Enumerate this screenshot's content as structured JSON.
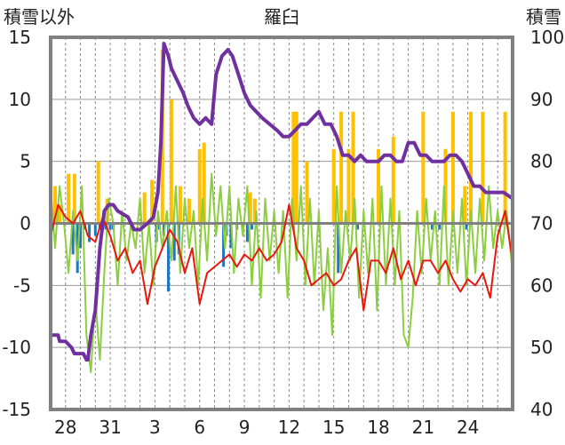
{
  "chart_data": {
    "type": "line",
    "title": "羅臼",
    "ylabel_left": "積雪以外",
    "ylabel_right": "積雪",
    "y_left_range": [
      -15,
      15
    ],
    "y_right_range": [
      40,
      100
    ],
    "y_left_ticks": [
      "15",
      "10",
      "5",
      "0",
      "-5",
      "-10",
      "-15"
    ],
    "y_right_ticks": [
      "100",
      "90",
      "80",
      "70",
      "60",
      "50",
      "40"
    ],
    "x_range": [
      0,
      31
    ],
    "x_ticks": [
      {
        "x": 1,
        "label": "28"
      },
      {
        "x": 4,
        "label": "31"
      },
      {
        "x": 7,
        "label": "3"
      },
      {
        "x": 10,
        "label": "6"
      },
      {
        "x": 13,
        "label": "9"
      },
      {
        "x": 16,
        "label": "12"
      },
      {
        "x": 19,
        "label": "15"
      },
      {
        "x": 22,
        "label": "18"
      },
      {
        "x": 25,
        "label": "21"
      },
      {
        "x": 28,
        "label": "24"
      }
    ],
    "grid": true,
    "colors": {
      "snow_depth": "#7030a0",
      "temperature": "#e8180e",
      "green_series": "#8cce3f",
      "snowfall_bars": "#ffc000",
      "precip_bars": "#1f77c4",
      "zero_line": "#808080",
      "frame": "#808080"
    },
    "snow_depth": {
      "axis": "right",
      "x": [
        0,
        0.5,
        0.6,
        1.0,
        1.4,
        1.6,
        2.2,
        2.4,
        2.5,
        2.7,
        3.0,
        3.3,
        3.6,
        3.9,
        4.2,
        4.5,
        5.2,
        5.6,
        6.0,
        6.5,
        6.9,
        7.2,
        7.4,
        7.6,
        7.9,
        8.1,
        8.5,
        8.9,
        9.2,
        9.6,
        10.0,
        10.4,
        10.8,
        11.1,
        11.5,
        11.9,
        12.2,
        12.6,
        13.0,
        13.4,
        13.8,
        14.2,
        14.7,
        15.2,
        15.6,
        16.0,
        16.4,
        16.8,
        17.2,
        17.6,
        18.0,
        18.4,
        18.8,
        19.2,
        19.6,
        20.0,
        20.4,
        20.8,
        21.2,
        21.6,
        22.0,
        22.4,
        22.8,
        23.2,
        23.6,
        24.0,
        24.4,
        24.8,
        25.2,
        25.6,
        26.0,
        26.4,
        26.8,
        27.2,
        27.6,
        28.0,
        28.4,
        28.8,
        29.2,
        29.6,
        30.0,
        30.4,
        31.0
      ],
      "values": [
        52,
        52,
        51,
        51,
        50,
        49,
        49,
        48,
        48,
        52,
        56,
        66,
        72,
        73,
        73,
        72,
        71,
        69,
        69,
        70,
        71,
        75,
        83,
        99,
        97,
        95,
        93,
        91,
        89,
        87,
        86,
        87,
        86,
        94,
        97,
        98,
        97,
        94,
        91,
        89,
        88,
        87,
        86,
        85,
        84,
        84,
        85,
        86,
        86,
        87,
        88,
        86,
        86,
        84,
        81,
        81,
        80,
        81,
        80,
        80,
        80,
        81,
        81,
        80,
        80,
        83,
        83,
        81,
        81,
        80,
        80,
        80,
        81,
        81,
        80,
        78,
        76,
        76,
        75,
        75,
        75,
        75,
        74
      ]
    },
    "temperature": {
      "axis": "left",
      "x": [
        0,
        0.5,
        1.0,
        1.5,
        2.0,
        2.5,
        3.0,
        3.5,
        4.0,
        4.5,
        5.0,
        5.5,
        6.0,
        6.5,
        7.0,
        7.5,
        8.0,
        8.5,
        9.0,
        9.5,
        10.0,
        10.5,
        11.0,
        11.5,
        12.0,
        12.5,
        13.0,
        13.5,
        14.0,
        14.5,
        15.0,
        15.5,
        16.0,
        16.5,
        17.0,
        17.5,
        18.0,
        18.5,
        19.0,
        19.5,
        20.0,
        20.5,
        21.0,
        21.5,
        22.0,
        22.5,
        23.0,
        23.5,
        24.0,
        24.5,
        25.0,
        25.5,
        26.0,
        26.5,
        27.0,
        27.5,
        28.0,
        28.5,
        29.0,
        29.5,
        30.0,
        30.5,
        31.0
      ],
      "values": [
        -1.0,
        1.5,
        0.5,
        0.0,
        1.0,
        -1.0,
        -1.5,
        0.5,
        -1.0,
        -3.0,
        -2.0,
        -4.0,
        -3.0,
        -6.5,
        -3.5,
        -2.0,
        -0.5,
        -1.5,
        -4.0,
        -2.0,
        -6.5,
        -4.0,
        -3.5,
        -3.0,
        -2.5,
        -3.5,
        -2.5,
        -3.0,
        -2.0,
        -3.0,
        -2.5,
        -1.5,
        1.5,
        -2.0,
        -3.0,
        -5.0,
        -4.5,
        -4.0,
        -5.0,
        -4.5,
        -3.0,
        -2.0,
        -7.0,
        -3.0,
        -3.0,
        -4.0,
        -2.0,
        -4.5,
        -3.0,
        -5.0,
        -3.0,
        -3.0,
        -4.0,
        -3.0,
        -4.5,
        -5.5,
        -4.5,
        -5.0,
        -4.0,
        -6.0,
        -1.0,
        1.0,
        -3.0
      ]
    },
    "green_series": {
      "axis": "left",
      "x": [
        0,
        0.3,
        0.6,
        0.9,
        1.2,
        1.5,
        1.8,
        2.1,
        2.4,
        2.7,
        3.0,
        3.3,
        3.6,
        3.9,
        4.2,
        4.5,
        4.8,
        5.1,
        5.4,
        5.7,
        6.0,
        6.3,
        6.6,
        6.9,
        7.2,
        7.5,
        7.8,
        8.1,
        8.4,
        8.7,
        9.0,
        9.3,
        9.6,
        9.9,
        10.2,
        10.5,
        10.8,
        11.1,
        11.4,
        11.7,
        12.0,
        12.3,
        12.6,
        12.9,
        13.2,
        13.5,
        13.8,
        14.1,
        14.4,
        14.7,
        15.0,
        15.3,
        15.6,
        15.9,
        16.2,
        16.5,
        16.8,
        17.1,
        17.4,
        17.7,
        18.0,
        18.3,
        18.6,
        18.9,
        19.2,
        19.5,
        19.8,
        20.1,
        20.4,
        20.7,
        21.0,
        21.3,
        21.6,
        21.9,
        22.2,
        22.5,
        22.8,
        23.1,
        23.4,
        23.7,
        24.0,
        24.3,
        24.6,
        24.9,
        25.2,
        25.5,
        25.8,
        26.1,
        26.4,
        26.7,
        27.0,
        27.3,
        27.6,
        27.9,
        28.2,
        28.5,
        28.8,
        29.1,
        29.4,
        29.7,
        30.0,
        30.3,
        30.6,
        31.0
      ],
      "values": [
        3,
        -2,
        3,
        0,
        -4,
        1,
        -3,
        3,
        -9,
        -12,
        -6,
        -11,
        -4,
        2,
        0,
        -5,
        1,
        -3,
        0,
        -2,
        2,
        -4,
        0,
        -5,
        1,
        -2,
        1,
        -3,
        3,
        -4,
        2,
        -2,
        1,
        -5,
        2,
        -3,
        4,
        -1,
        3,
        -2,
        3,
        -4,
        2,
        -1,
        3,
        -5,
        1,
        -6,
        2,
        -3,
        1,
        -4,
        1,
        -6,
        2,
        -3,
        3,
        -5,
        2,
        -5,
        1,
        -7,
        -2,
        -9,
        3,
        -4,
        1,
        -3,
        2,
        -6,
        1,
        -4,
        2,
        -7,
        3,
        -5,
        2,
        -5,
        1,
        -9,
        -10,
        -6,
        1,
        -4,
        2,
        -3,
        1,
        -5,
        3,
        -5,
        1,
        -4,
        2,
        -5,
        1,
        -4,
        2,
        -3,
        3,
        -2,
        1,
        -2,
        1,
        -4
      ]
    },
    "snowfall_bars": {
      "axis": "left",
      "x": [
        0.3,
        0.6,
        1.2,
        1.6,
        3.2,
        3.8,
        6.3,
        6.8,
        7.5,
        8.1,
        8.7,
        9.3,
        10.0,
        10.3,
        13.4,
        13.7,
        16.3,
        16.5,
        17.2,
        19.0,
        19.5,
        20.0,
        20.3,
        22.0,
        23.0,
        25.0,
        26.5,
        27.0,
        27.8,
        28.2,
        29.0,
        30.5
      ],
      "values": [
        3,
        1.5,
        4,
        4,
        5,
        2,
        2.5,
        3.5,
        14,
        10,
        3,
        2,
        6,
        6.5,
        2.5,
        2,
        9,
        9,
        5,
        6,
        9,
        6,
        9,
        6,
        7,
        9,
        6,
        9,
        3,
        9,
        9,
        9
      ]
    },
    "precip_bars": {
      "axis": "left",
      "x": [
        1.5,
        1.8,
        2.0,
        2.3,
        2.6,
        3.0,
        3.3,
        3.7,
        4.0,
        4.2,
        7.1,
        7.3,
        7.6,
        7.9,
        8.3,
        8.6,
        11.6,
        11.8,
        12.1,
        12.5,
        12.9,
        13.2,
        13.5,
        19.3,
        20.6,
        25.6,
        26.1,
        27.9
      ],
      "values": [
        -2.5,
        -4.0,
        -2.0,
        -0.5,
        -1.5,
        -1.0,
        -0.5,
        -0.5,
        -0.5,
        -0.5,
        -1.5,
        -0.5,
        -1.0,
        -5.5,
        -3.0,
        -2.5,
        -3.5,
        -1.0,
        -2.0,
        -0.5,
        -0.5,
        -1.5,
        -0.5,
        -4.0,
        -0.5,
        -0.5,
        -0.5,
        -0.5
      ]
    }
  }
}
